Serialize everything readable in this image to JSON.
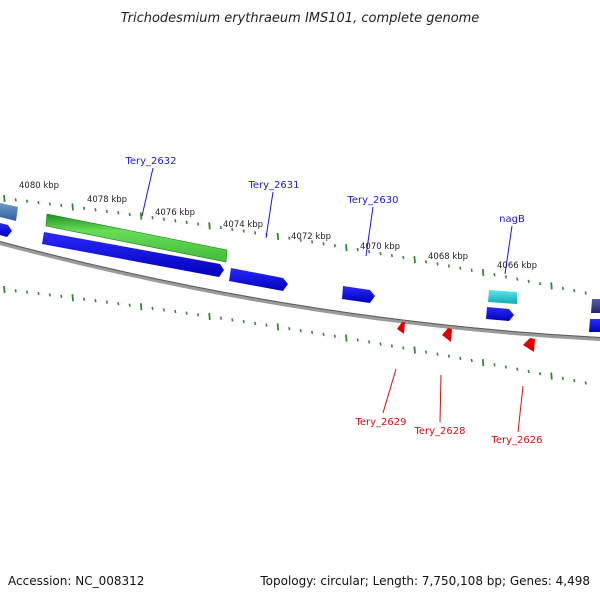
{
  "title": "Trichodesmium erythraeum IMS101, complete genome",
  "footer": {
    "accession": "Accession: NC_008312",
    "stats": "Topology: circular; Length: 7,750,108 bp; Genes: 4,498"
  },
  "colors": {
    "backbone": "#8a8a8a",
    "tick": "#2e8b2e",
    "forward_cds": "#1010e0",
    "forward_label": "#1a1acc",
    "reverse_cds": "#e00000",
    "reverse_label": "#cc1111",
    "rna": "#44cc44",
    "teal": "#20c8d0",
    "steel": "#4a7ab8",
    "navy": "#3a3a8a"
  },
  "position_labels": [
    "4080 kbp",
    "4078 kbp",
    "4076 kbp",
    "4074 kbp",
    "4072 kbp",
    "4070 kbp",
    "4068 kbp",
    "4066 kbp"
  ],
  "forward_gene_labels": [
    "Tery_2632",
    "Tery_2631",
    "Tery_2630",
    "nagB"
  ],
  "reverse_gene_labels": [
    "Tery_2629",
    "Tery_2628",
    "Tery_2626"
  ]
}
